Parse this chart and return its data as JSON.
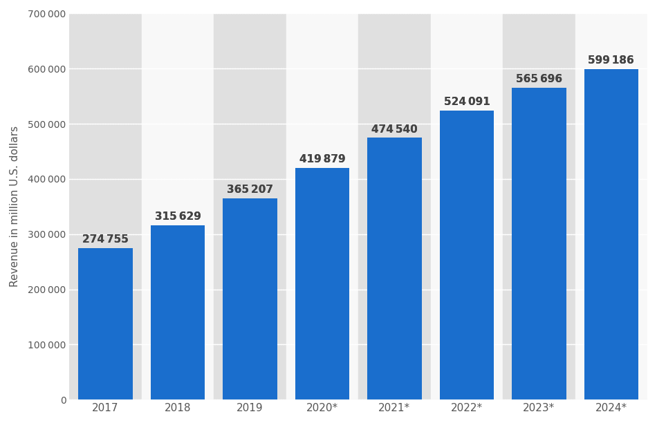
{
  "categories": [
    "2017",
    "2018",
    "2019",
    "2020*",
    "2021*",
    "2022*",
    "2023*",
    "2024*"
  ],
  "values": [
    274755,
    315629,
    365207,
    419879,
    474540,
    524091,
    565696,
    599186
  ],
  "bar_color": "#1a6ecd",
  "label_color": "#444444",
  "ylabel": "Revenue in million U.S. dollars",
  "ylim": [
    0,
    700000
  ],
  "yticks": [
    0,
    100000,
    200000,
    300000,
    400000,
    500000,
    600000,
    700000
  ],
  "background_color": "#ffffff",
  "plot_bg_color": "#f0f0f0",
  "col_dark": "#e0e0e0",
  "col_light": "#f8f8f8",
  "grid_color": "#ffffff",
  "label_fontsize": 11,
  "axis_fontsize": 11,
  "bar_label_fontsize": 11
}
